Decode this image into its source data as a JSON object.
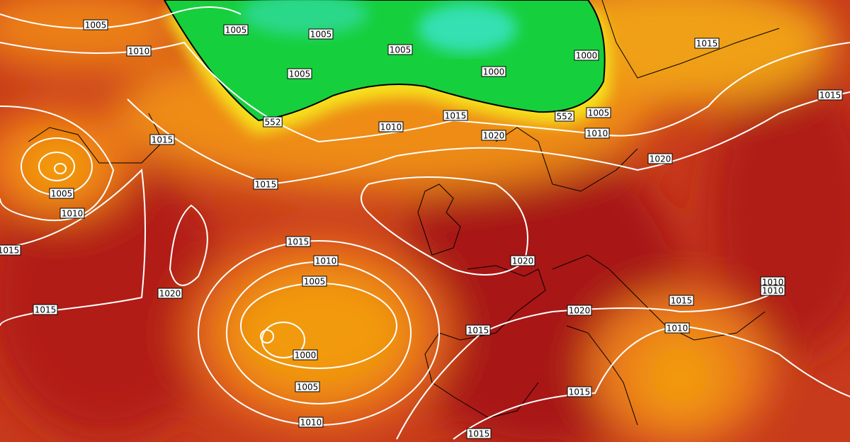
{
  "map": {
    "isobar_labels": [
      "1005",
      "1005",
      "1005",
      "1010",
      "1005",
      "1000",
      "1005",
      "1000",
      "1015",
      "1015",
      "1005",
      "552",
      "552",
      "1015",
      "1010",
      "1010",
      "1020",
      "1015",
      "1020",
      "1015",
      "1005",
      "1010",
      "1015",
      "1015",
      "1010",
      "1020",
      "1005",
      "1010",
      "1010",
      "1020",
      "1015",
      "1015",
      "1020",
      "1010",
      "1015",
      "1000",
      "1005",
      "1015",
      "1010",
      "1015"
    ]
  }
}
